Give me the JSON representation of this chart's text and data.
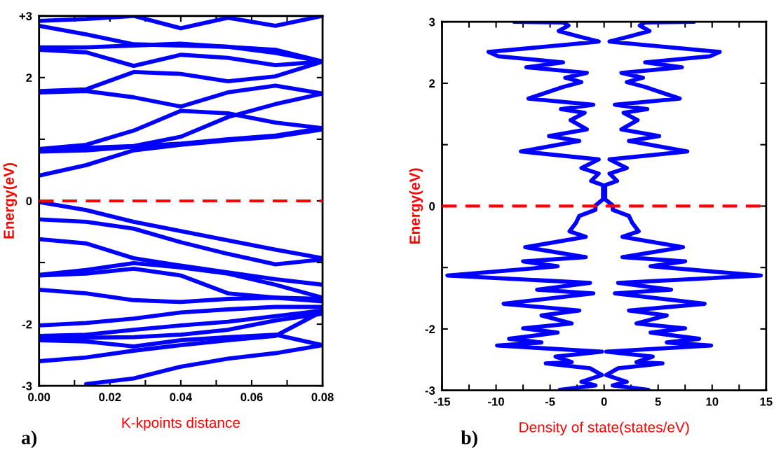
{
  "chart_data": [
    {
      "type": "line",
      "xlabel": "K-kpoints distance",
      "ylabel": "Energy(eV)",
      "annotations": [
        "a)"
      ],
      "x": [
        0,
        0.0133,
        0.0267,
        0.04,
        0.0533,
        0.0667,
        0.08
      ],
      "xlim": [
        0,
        0.08
      ],
      "ylim": [
        -3,
        3
      ],
      "xticks": [
        {
          "value": 0,
          "label": "0.00"
        },
        {
          "value": 0.01,
          "label": null
        },
        {
          "value": 0.02,
          "label": "0.02"
        },
        {
          "value": 0.03,
          "label": null
        },
        {
          "value": 0.04,
          "label": "0.04"
        },
        {
          "value": 0.05,
          "label": null
        },
        {
          "value": 0.06,
          "label": "0.06"
        },
        {
          "value": 0.07,
          "label": null
        },
        {
          "value": 0.08,
          "label": "0.08"
        }
      ],
      "yticks": [
        -3,
        -2,
        {
          "value": -1,
          "label": null
        },
        0,
        {
          "value": 1,
          "label": null
        },
        2,
        {
          "value": 3,
          "label": "+3"
        }
      ],
      "grid": false,
      "marker": "none",
      "line_style": "solid",
      "ref_lines": [
        {
          "axis": "y",
          "value": 0,
          "color": "#ff0000",
          "line_style": "dashed"
        }
      ],
      "series": [
        {
          "color": "#0000ff",
          "values": [
            2.92,
            2.95,
            3.0,
            2.8,
            2.97,
            2.84,
            3.0
          ]
        },
        {
          "color": "#0000ff",
          "values": [
            2.84,
            2.7,
            2.54,
            2.52,
            2.5,
            2.45,
            2.26
          ]
        },
        {
          "color": "#0000ff",
          "values": [
            2.49,
            2.49,
            2.52,
            2.55,
            2.5,
            2.4,
            2.26
          ]
        },
        {
          "color": "#0000ff",
          "values": [
            2.45,
            2.41,
            2.19,
            2.37,
            2.32,
            2.2,
            2.26
          ]
        },
        {
          "color": "#0000ff",
          "values": [
            1.78,
            1.81,
            2.09,
            2.06,
            1.94,
            2.02,
            2.26
          ]
        },
        {
          "color": "#0000ff",
          "values": [
            1.76,
            1.78,
            1.68,
            1.53,
            1.76,
            1.87,
            1.74
          ]
        },
        {
          "color": "#0000ff",
          "values": [
            0.84,
            0.91,
            1.14,
            1.46,
            1.42,
            1.27,
            1.18
          ]
        },
        {
          "color": "#0000ff",
          "values": [
            0.82,
            0.86,
            0.89,
            1.04,
            1.36,
            1.57,
            1.74
          ]
        },
        {
          "color": "#0000ff",
          "values": [
            0.8,
            0.82,
            0.88,
            0.93,
            1.0,
            1.06,
            1.18
          ]
        },
        {
          "color": "#0000ff",
          "values": [
            0.41,
            0.58,
            0.82,
            0.91,
            0.98,
            1.04,
            1.16
          ]
        },
        {
          "color": "#0000ff",
          "values": [
            -0.02,
            -0.15,
            -0.34,
            -0.49,
            -0.64,
            -0.79,
            -0.93
          ]
        },
        {
          "color": "#0000ff",
          "values": [
            -0.3,
            -0.34,
            -0.45,
            -0.67,
            -0.86,
            -1.03,
            -0.95
          ]
        },
        {
          "color": "#0000ff",
          "values": [
            -0.62,
            -0.69,
            -0.93,
            -1.05,
            -1.16,
            -1.27,
            -1.36
          ]
        },
        {
          "color": "#0000ff",
          "values": [
            -1.2,
            -1.12,
            -1.01,
            -1.08,
            -1.18,
            -1.36,
            -1.57
          ]
        },
        {
          "color": "#0000ff",
          "values": [
            -1.21,
            -1.18,
            -1.1,
            -1.21,
            -1.5,
            -1.57,
            -1.59
          ]
        },
        {
          "color": "#0000ff",
          "values": [
            -1.44,
            -1.5,
            -1.61,
            -1.64,
            -1.59,
            -1.57,
            -1.63
          ]
        },
        {
          "color": "#0000ff",
          "values": [
            -2.02,
            -1.98,
            -1.91,
            -1.81,
            -1.76,
            -1.72,
            -1.72
          ]
        },
        {
          "color": "#0000ff",
          "values": [
            -2.19,
            -2.17,
            -2.09,
            -2.02,
            -1.96,
            -1.87,
            -1.78
          ]
        },
        {
          "color": "#0000ff",
          "values": [
            -2.22,
            -2.22,
            -2.21,
            -2.17,
            -2.09,
            -1.94,
            -1.83
          ]
        },
        {
          "color": "#0000ff",
          "values": [
            -2.26,
            -2.28,
            -2.36,
            -2.26,
            -2.21,
            -2.17,
            -2.34
          ]
        },
        {
          "color": "#0000ff",
          "values": [
            -2.6,
            -2.54,
            -2.43,
            -2.34,
            -2.26,
            -2.19,
            -1.79
          ]
        },
        {
          "color": "#0000ff",
          "values": [
            null,
            -2.97,
            -2.88,
            -2.69,
            -2.56,
            -2.47,
            -2.34
          ]
        }
      ]
    },
    {
      "type": "line",
      "xlabel": "Density of state(states/eV)",
      "ylabel": "Energy(eV)",
      "annotations": [
        "b)"
      ],
      "xlim": [
        -15,
        15
      ],
      "ylim": [
        -3,
        3
      ],
      "xticks": [
        -15,
        {
          "value": -12.5,
          "label": null
        },
        -10,
        {
          "value": -7.5,
          "label": null
        },
        -5,
        {
          "value": -2.5,
          "label": null
        },
        0,
        {
          "value": 2.5,
          "label": null
        },
        5,
        {
          "value": 7.5,
          "label": null
        },
        10,
        {
          "value": 12.5,
          "label": null
        },
        15
      ],
      "yticks": [
        -3,
        -2,
        {
          "value": -1,
          "label": null
        },
        0,
        {
          "value": 1,
          "label": null
        },
        2,
        3
      ],
      "grid": false,
      "marker": "none",
      "line_style": "solid",
      "ref_lines": [
        {
          "axis": "y",
          "value": 0,
          "color": "#ff0000",
          "line_style": "dashed"
        }
      ],
      "series": [
        {
          "color": "#0000ff",
          "x": [
            8.3,
            3.8,
            3.3,
            4.2,
            2.3,
            0.5,
            3.3,
            10.7,
            9.8,
            3.8,
            7.2,
            1.6,
            3.6,
            2.1,
            3.8,
            7.0,
            1.0,
            4.0,
            1.8,
            3.1,
            1.6,
            5.1,
            2.3,
            7.7,
            0.5,
            2.1,
            0.5,
            1.2,
            0.1,
            0.1,
            0.8,
            0.8,
            2.3,
            2.6,
            3.2,
            1.7,
            7.3,
            1.7,
            7.5,
            4.3,
            14.5,
            1.3,
            6.2,
            1.0,
            9.3,
            2.3,
            5.8,
            3.0,
            7.5,
            4.3,
            8.8,
            5.8,
            9.9,
            0.2,
            4.5,
            3.0,
            5.4,
            1.3,
            0.2,
            2.1,
            0.8,
            4.1
          ],
          "values": [
            3.0,
            2.99,
            2.94,
            2.85,
            2.76,
            2.68,
            2.63,
            2.51,
            2.44,
            2.34,
            2.26,
            2.17,
            2.09,
            2.02,
            1.94,
            1.75,
            1.65,
            1.58,
            1.52,
            1.4,
            1.25,
            1.14,
            1.06,
            0.89,
            0.76,
            0.62,
            0.53,
            0.41,
            0.34,
            0.11,
            0.01,
            -0.06,
            -0.16,
            -0.27,
            -0.41,
            -0.5,
            -0.67,
            -0.83,
            -0.9,
            -0.98,
            -1.13,
            -1.25,
            -1.36,
            -1.42,
            -1.59,
            -1.7,
            -1.78,
            -1.91,
            -1.99,
            -2.06,
            -2.16,
            -2.22,
            -2.27,
            -2.37,
            -2.45,
            -2.54,
            -2.56,
            -2.64,
            -2.75,
            -2.86,
            -2.92,
            -2.99
          ]
        },
        {
          "color": "#0000ff",
          "x": [
            -8.3,
            -3.8,
            -3.3,
            -4.2,
            -2.3,
            -0.5,
            -3.3,
            -10.7,
            -9.8,
            -3.8,
            -7.2,
            -1.6,
            -3.6,
            -2.1,
            -3.8,
            -7.0,
            -1.0,
            -4.0,
            -1.8,
            -3.1,
            -1.6,
            -5.1,
            -2.3,
            -7.7,
            -0.5,
            -2.1,
            -0.5,
            -1.2,
            -0.1,
            -0.1,
            -0.8,
            -0.8,
            -2.3,
            -2.6,
            -3.2,
            -1.7,
            -7.3,
            -1.7,
            -7.5,
            -4.3,
            -14.5,
            -1.3,
            -6.2,
            -1.0,
            -9.3,
            -2.3,
            -5.8,
            -3.0,
            -7.5,
            -4.3,
            -8.8,
            -5.8,
            -9.9,
            -0.2,
            -4.5,
            -3.0,
            -5.4,
            -1.3,
            -0.2,
            -2.1,
            -0.8,
            -4.1
          ],
          "values": [
            3.0,
            2.99,
            2.94,
            2.85,
            2.76,
            2.68,
            2.63,
            2.51,
            2.44,
            2.34,
            2.26,
            2.17,
            2.09,
            2.02,
            1.94,
            1.75,
            1.65,
            1.58,
            1.52,
            1.4,
            1.25,
            1.14,
            1.06,
            0.89,
            0.76,
            0.62,
            0.53,
            0.41,
            0.34,
            0.11,
            0.01,
            -0.06,
            -0.16,
            -0.27,
            -0.41,
            -0.5,
            -0.67,
            -0.83,
            -0.9,
            -0.98,
            -1.13,
            -1.25,
            -1.36,
            -1.42,
            -1.59,
            -1.7,
            -1.78,
            -1.91,
            -1.99,
            -2.06,
            -2.16,
            -2.22,
            -2.27,
            -2.37,
            -2.45,
            -2.54,
            -2.56,
            -2.64,
            -2.75,
            -2.86,
            -2.92,
            -2.99
          ]
        }
      ]
    }
  ]
}
